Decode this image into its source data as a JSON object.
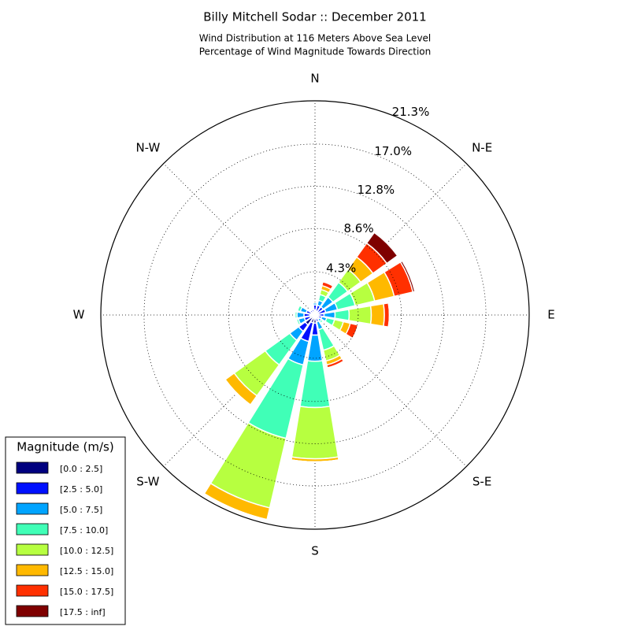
{
  "chart_data": {
    "type": "windrose",
    "title": "Billy Mitchell Sodar :: December 2011",
    "subtitle": [
      "Wind Distribution at 116 Meters Above Sea Level",
      "Percentage of Wind Magnitude Towards Direction"
    ],
    "categories": [
      "N",
      null,
      "N-E",
      null,
      "E",
      null,
      "S-E",
      null,
      "S",
      null,
      "S-W",
      null,
      "W",
      null,
      "N-W",
      null
    ],
    "rlim": [
      0,
      21.3
    ],
    "rticks": [
      {
        "value": 4.3,
        "label": "4.3%"
      },
      {
        "value": 8.6,
        "label": "8.6%"
      },
      {
        "value": 12.8,
        "label": "12.8%"
      },
      {
        "value": 17.0,
        "label": "17.0%"
      },
      {
        "value": 21.3,
        "label": "21.3%"
      }
    ],
    "legend_title": "Magnitude (m/s)",
    "legend_position": "lower left",
    "grid": true,
    "series": [
      {
        "name": "[0.0 : 2.5]",
        "color": "#00007f",
        "values": [
          0.5,
          0.4,
          0.3,
          0.3,
          0.3,
          0.3,
          0.2,
          0.2,
          0.8,
          0.8,
          1.2,
          0.5,
          0.5,
          0.4,
          0.3,
          0.3
        ]
      },
      {
        "name": "[2.5 : 5.0]",
        "color": "#0010ff",
        "values": [
          0.5,
          0.6,
          0.7,
          0.8,
          0.6,
          0.4,
          0.3,
          0.5,
          1.2,
          1.9,
          0.8,
          0.6,
          0.6,
          0.5,
          0.3,
          0.3
        ]
      },
      {
        "name": "[5.0 : 7.5]",
        "color": "#00a4ff",
        "values": [
          0.2,
          0.5,
          1.2,
          1.2,
          1.1,
          0.5,
          0.3,
          0.8,
          2.6,
          2.4,
          1.1,
          0.6,
          0.7,
          0.6,
          0.1,
          0
        ]
      },
      {
        "name": "[7.5 : 10.0]",
        "color": "#40ffb7",
        "values": [
          0,
          0.6,
          1.8,
          1.8,
          1.4,
          0.8,
          0.2,
          2.1,
          4.6,
          7.5,
          3.0,
          0.2,
          0.2,
          0.3,
          0,
          0
        ]
      },
      {
        "name": "[10.0 : 12.5]",
        "color": "#b7ff40",
        "values": [
          0,
          0.5,
          1.6,
          2.0,
          2.2,
          0.9,
          0,
          1.1,
          5.1,
          7.1,
          3.8,
          0,
          0,
          0,
          0,
          0
        ]
      },
      {
        "name": "[12.5 : 15.0]",
        "color": "#ffb900",
        "values": [
          0,
          0.4,
          1.5,
          2.0,
          1.3,
          0.7,
          0,
          0.4,
          0.3,
          1.2,
          1.1,
          0,
          0,
          0,
          0,
          0
        ]
      },
      {
        "name": "[15.0 : 17.5]",
        "color": "#ff3000",
        "values": [
          0,
          0.4,
          1.7,
          1.9,
          0.5,
          0.8,
          0,
          0.3,
          0,
          0,
          0,
          0,
          0,
          0,
          0,
          0
        ]
      },
      {
        "name": "[17.5 : inf]",
        "color": "#7f0000",
        "values": [
          0,
          0,
          1.3,
          0.2,
          0.1,
          0,
          0,
          0.1,
          0,
          0,
          0,
          0,
          0,
          0,
          0,
          0
        ]
      }
    ]
  }
}
